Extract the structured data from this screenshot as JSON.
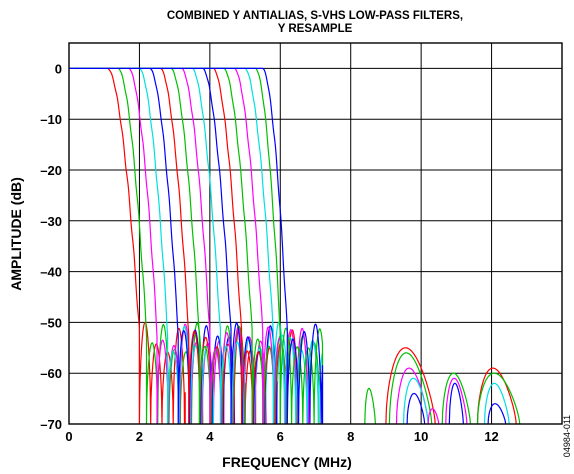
{
  "chart_data": {
    "type": "line",
    "title_line1": "COMBINED Y ANTIALIAS, S-VHS LOW-PASS FILTERS,",
    "title_line2": "Y RESAMPLE",
    "xlabel": "FREQUENCY (MHz)",
    "ylabel": "AMPLITUDE (dB)",
    "figure_id": "04984-011",
    "xlim": [
      0,
      14
    ],
    "ylim": [
      -70,
      5
    ],
    "xticks": [
      0,
      2,
      4,
      6,
      8,
      10,
      12
    ],
    "yticks": [
      0,
      -10,
      -20,
      -30,
      -40,
      -50,
      -60,
      -70
    ],
    "xtick_labels": [
      "0",
      "2",
      "4",
      "6",
      "8",
      "10",
      "12"
    ],
    "ytick_labels": [
      "0",
      "–10",
      "–20",
      "–30",
      "–40",
      "–50",
      "–60",
      "–70"
    ],
    "grid": true,
    "series": [
      {
        "color": "#ff0000",
        "passband_end_mhz": 1.1,
        "stopband_mhz": 2.0
      },
      {
        "color": "#00c000",
        "passband_end_mhz": 1.4,
        "stopband_mhz": 2.2
      },
      {
        "color": "#ff00ff",
        "passband_end_mhz": 1.7,
        "stopband_mhz": 2.5
      },
      {
        "color": "#00e0e0",
        "passband_end_mhz": 2.0,
        "stopband_mhz": 2.8
      },
      {
        "color": "#0000ff",
        "passband_end_mhz": 2.3,
        "stopband_mhz": 3.1
      },
      {
        "color": "#ff0000",
        "passband_end_mhz": 2.6,
        "stopband_mhz": 3.4
      },
      {
        "color": "#00c000",
        "passband_end_mhz": 2.9,
        "stopband_mhz": 3.7
      },
      {
        "color": "#ff00ff",
        "passband_end_mhz": 3.2,
        "stopband_mhz": 4.0
      },
      {
        "color": "#00e0e0",
        "passband_end_mhz": 3.5,
        "stopband_mhz": 4.3
      },
      {
        "color": "#0000ff",
        "passband_end_mhz": 3.8,
        "stopband_mhz": 4.6
      },
      {
        "color": "#ff0000",
        "passband_end_mhz": 4.1,
        "stopband_mhz": 4.9
      },
      {
        "color": "#00c000",
        "passband_end_mhz": 4.4,
        "stopband_mhz": 5.2
      },
      {
        "color": "#ff00ff",
        "passband_end_mhz": 4.7,
        "stopband_mhz": 5.5
      },
      {
        "color": "#00e0e0",
        "passband_end_mhz": 5.0,
        "stopband_mhz": 5.8
      },
      {
        "color": "#00c000",
        "passband_end_mhz": 5.3,
        "stopband_mhz": 6.0
      },
      {
        "color": "#0000ff",
        "passband_end_mhz": 5.5,
        "stopband_mhz": 6.2
      }
    ],
    "sidelobes": [
      {
        "color": "#00c000",
        "start": 8.4,
        "end": 8.7,
        "peak_db": -63
      },
      {
        "color": "#ff0000",
        "start": 9.0,
        "end": 10.4,
        "peak_db": -55
      },
      {
        "color": "#00c000",
        "start": 9.1,
        "end": 10.3,
        "peak_db": -56
      },
      {
        "color": "#ff00ff",
        "start": 9.3,
        "end": 10.2,
        "peak_db": -59
      },
      {
        "color": "#00e0e0",
        "start": 9.5,
        "end": 10.2,
        "peak_db": -61
      },
      {
        "color": "#0000ff",
        "start": 9.6,
        "end": 10.1,
        "peak_db": -64
      },
      {
        "color": "#00c000",
        "start": 10.6,
        "end": 11.4,
        "peak_db": -60
      },
      {
        "color": "#ff00ff",
        "start": 10.7,
        "end": 11.3,
        "peak_db": -61
      },
      {
        "color": "#0000ff",
        "start": 10.8,
        "end": 11.2,
        "peak_db": -62
      },
      {
        "color": "#ff00ff",
        "start": 10.2,
        "end": 10.5,
        "peak_db": -67
      },
      {
        "color": "#ff0000",
        "start": 11.6,
        "end": 12.7,
        "peak_db": -59
      },
      {
        "color": "#00c000",
        "start": 11.6,
        "end": 12.8,
        "peak_db": -60
      },
      {
        "color": "#00e0e0",
        "start": 11.8,
        "end": 12.5,
        "peak_db": -62
      },
      {
        "color": "#0000ff",
        "start": 11.9,
        "end": 12.4,
        "peak_db": -66
      }
    ]
  }
}
